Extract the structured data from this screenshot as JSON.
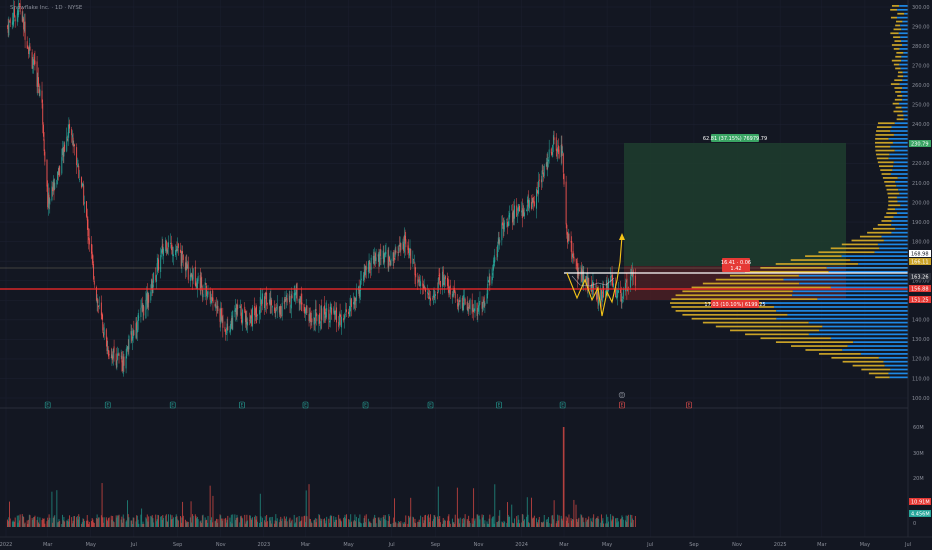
{
  "header": {
    "symbol_line": "Snowflake Inc. · 1D · NYSE"
  },
  "colors": {
    "background": "#131722",
    "up": "#26a69a",
    "down": "#ef5350",
    "vp_up": "#1e88e5",
    "vp_down": "#c9a227",
    "target_zone": "#1f3d2e",
    "stop_zone": "#4a1f23",
    "hline_red": "#ff2a2a",
    "hline_white": "#ffffff",
    "path": "#f5c518"
  },
  "chart_data": [
    {
      "type": "candlestick",
      "title": "",
      "ylim": [
        100,
        300
      ],
      "y_ticks": [
        "300.00",
        "290.00",
        "280.00",
        "270.00",
        "260.00",
        "250.00",
        "240.00",
        "230.00",
        "220.00",
        "210.00",
        "200.00",
        "190.00",
        "180.00",
        "170.00",
        "160.00",
        "150.00",
        "140.00",
        "130.00",
        "120.00",
        "110.00",
        "100.00"
      ],
      "x_ticks": [
        "2022",
        "Mar",
        "May",
        "Jul",
        "Sep",
        "Nov",
        "2023",
        "Mar",
        "May",
        "Jul",
        "Sep",
        "Nov",
        "2024",
        "Mar",
        "May",
        "Jul",
        "Sep",
        "Nov",
        "2025",
        "Mar",
        "May",
        "Jul"
      ],
      "price_anchors": [
        [
          "2022-01-03",
          290
        ],
        [
          "2022-01-20",
          300
        ],
        [
          "2022-02-05",
          275
        ],
        [
          "2022-02-20",
          255
        ],
        [
          "2022-03-01",
          200
        ],
        [
          "2022-03-20",
          220
        ],
        [
          "2022-04-01",
          240
        ],
        [
          "2022-04-20",
          205
        ],
        [
          "2022-05-10",
          150
        ],
        [
          "2022-05-25",
          125
        ],
        [
          "2022-06-15",
          118
        ],
        [
          "2022-07-01",
          135
        ],
        [
          "2022-07-20",
          150
        ],
        [
          "2022-08-15",
          180
        ],
        [
          "2022-09-01",
          175
        ],
        [
          "2022-09-15",
          165
        ],
        [
          "2022-10-01",
          160
        ],
        [
          "2022-10-20",
          150
        ],
        [
          "2022-11-10",
          135
        ],
        [
          "2022-11-25",
          145
        ],
        [
          "2022-12-10",
          140
        ],
        [
          "2023-01-01",
          150
        ],
        [
          "2023-01-25",
          145
        ],
        [
          "2023-02-15",
          155
        ],
        [
          "2023-03-10",
          140
        ],
        [
          "2023-04-01",
          145
        ],
        [
          "2023-04-20",
          138
        ],
        [
          "2023-05-10",
          150
        ],
        [
          "2023-05-25",
          165
        ],
        [
          "2023-06-15",
          172
        ],
        [
          "2023-07-01",
          170
        ],
        [
          "2023-07-20",
          180
        ],
        [
          "2023-08-10",
          160
        ],
        [
          "2023-08-25",
          150
        ],
        [
          "2023-09-10",
          162
        ],
        [
          "2023-10-01",
          150
        ],
        [
          "2023-10-20",
          148
        ],
        [
          "2023-11-05",
          145
        ],
        [
          "2023-11-20",
          165
        ],
        [
          "2023-12-05",
          190
        ],
        [
          "2023-12-25",
          195
        ],
        [
          "2024-01-15",
          198
        ],
        [
          "2024-01-31",
          215
        ],
        [
          "2024-02-15",
          230
        ],
        [
          "2024-02-28",
          225
        ],
        [
          "2024-03-05",
          185
        ],
        [
          "2024-03-20",
          165
        ],
        [
          "2024-04-05",
          158
        ],
        [
          "2024-04-20",
          152
        ],
        [
          "2024-05-05",
          160
        ],
        [
          "2024-05-20",
          150
        ],
        [
          "2024-06-05",
          165
        ],
        [
          "2024-06-10",
          158
        ]
      ],
      "volume_y_ticks": [
        "60M",
        "30M",
        "20M",
        "0"
      ],
      "volume_labels": [
        "10.91M",
        "4.456M"
      ],
      "event_markers": [
        "E",
        "E",
        "E",
        "E",
        "E",
        "E",
        "E",
        "E",
        "E",
        "E",
        "E",
        "E"
      ],
      "dividend_marker": "D"
    }
  ],
  "price_tags": {
    "top_target": "230.79",
    "line_a": "168.98",
    "line_b": "166.11",
    "line_c": "163.26",
    "line_d": "156.88",
    "bottom": "151.25",
    "tgt_text": "62.81 (37.15%) 76979.79",
    "stop_text": "17.03 (10.10%) 6199.25",
    "entry_text": "16.41 · 0.06",
    "entry_ratio": "1.42"
  }
}
